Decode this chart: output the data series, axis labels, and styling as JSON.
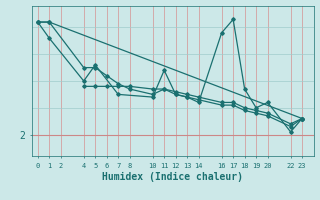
{
  "xlabel": "Humidex (Indice chaleur)",
  "bg_color": "#cce8e8",
  "line_color": "#1a7070",
  "grid_color_v": "#d4a0a0",
  "grid_color_h": "#a0cccc",
  "red_line_color": "#cc8888",
  "xticks": [
    0,
    1,
    2,
    4,
    5,
    6,
    7,
    8,
    10,
    11,
    12,
    13,
    14,
    16,
    17,
    18,
    19,
    20,
    22,
    23
  ],
  "xlim": [
    -0.5,
    24.0
  ],
  "ylim": [
    1.2,
    6.8
  ],
  "yticks": [
    2
  ],
  "ytick_labels": [
    "2"
  ],
  "lines": [
    {
      "x": [
        0,
        1,
        4,
        5,
        6,
        7,
        8,
        10,
        11,
        12,
        13,
        14,
        16,
        17,
        18,
        19,
        20,
        22,
        23
      ],
      "y": [
        6.2,
        6.2,
        4.5,
        4.5,
        4.2,
        3.9,
        3.7,
        3.5,
        3.7,
        3.5,
        3.4,
        3.3,
        3.1,
        3.1,
        2.9,
        2.8,
        2.7,
        2.3,
        2.6
      ]
    },
    {
      "x": [
        0,
        1,
        4,
        5,
        7,
        10,
        11,
        12,
        13,
        14,
        16,
        17,
        18,
        19,
        20,
        22,
        23
      ],
      "y": [
        6.2,
        5.6,
        4.0,
        4.6,
        3.5,
        3.4,
        4.4,
        3.5,
        3.4,
        3.2,
        5.8,
        6.3,
        3.7,
        3.0,
        3.2,
        2.1,
        2.6
      ]
    },
    {
      "x": [
        4,
        5,
        6,
        7,
        8,
        10,
        11,
        12,
        13,
        14,
        16,
        17,
        18,
        19,
        20,
        22,
        23
      ],
      "y": [
        3.8,
        3.8,
        3.8,
        3.8,
        3.8,
        3.7,
        3.7,
        3.6,
        3.5,
        3.4,
        3.2,
        3.2,
        3.0,
        2.9,
        2.8,
        2.4,
        2.6
      ]
    },
    {
      "x": [
        0,
        1,
        23
      ],
      "y": [
        6.2,
        6.2,
        2.6
      ]
    }
  ]
}
